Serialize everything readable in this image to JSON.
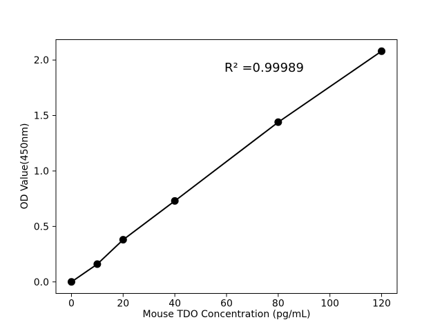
{
  "figure": {
    "background": "#ffffff",
    "foreground": "#000000"
  },
  "chart_data": {
    "type": "line",
    "title": "",
    "x": [
      0,
      10,
      20,
      40,
      80,
      120
    ],
    "y": [
      0.0,
      0.16,
      0.38,
      0.73,
      1.44,
      2.08
    ],
    "xlabel": "Mouse TDO Concentration (pg/mL)",
    "ylabel": "OD Value(450nm)",
    "annotation": "R² =0.99989",
    "xlim": [
      -6,
      126
    ],
    "ylim": [
      -0.104,
      2.184
    ],
    "xticks": {
      "values": [
        0,
        20,
        40,
        60,
        80,
        100,
        120
      ],
      "labels": [
        "0",
        "20",
        "40",
        "60",
        "80",
        "100",
        "120"
      ]
    },
    "yticks": {
      "values": [
        0,
        0.5,
        1.0,
        1.5,
        2.0
      ],
      "labels": [
        "0.0",
        "0.5",
        "1.0",
        "1.5",
        "2.0"
      ]
    },
    "grid": false,
    "legend": false,
    "line_color": "#000000",
    "marker": "circle",
    "marker_color": "#000000"
  }
}
